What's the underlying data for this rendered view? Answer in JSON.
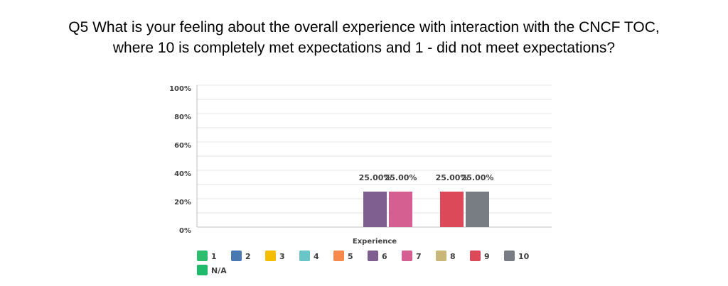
{
  "chart_data": {
    "type": "bar",
    "title_lines": [
      "Q5 What is your feeling about the overall experience with interaction with the CNCF TOC,",
      "where 10 is completely met expectations and 1 - did not meet expectations?"
    ],
    "xlabel": "Experience",
    "ylabel": "",
    "categories": [
      "Experience"
    ],
    "y_tick_labels": [
      "0%",
      "20%",
      "40%",
      "60%",
      "80%",
      "100%"
    ],
    "ylim": [
      0,
      100
    ],
    "grid": true,
    "legend_position": "bottom-left",
    "series": [
      {
        "name": "1",
        "values": [
          0
        ],
        "label": "",
        "color": "#2dbd6e"
      },
      {
        "name": "2",
        "values": [
          0
        ],
        "label": "",
        "color": "#4a79b1"
      },
      {
        "name": "3",
        "values": [
          0
        ],
        "label": "",
        "color": "#f5bd00"
      },
      {
        "name": "4",
        "values": [
          0
        ],
        "label": "",
        "color": "#6ac5c9"
      },
      {
        "name": "5",
        "values": [
          0
        ],
        "label": "",
        "color": "#f68a4c"
      },
      {
        "name": "6",
        "values": [
          25
        ],
        "label": "25.00%",
        "color": "#7e5f90"
      },
      {
        "name": "7",
        "values": [
          25
        ],
        "label": "25.00%",
        "color": "#d65f92"
      },
      {
        "name": "8",
        "values": [
          0
        ],
        "label": "",
        "color": "#c9b77a"
      },
      {
        "name": "9",
        "values": [
          25
        ],
        "label": "25.00%",
        "color": "#dc4a5a"
      },
      {
        "name": "10",
        "values": [
          25
        ],
        "label": "25.00%",
        "color": "#787d83"
      },
      {
        "name": "N/A",
        "values": [
          0
        ],
        "label": "",
        "color": "#1fba6b"
      }
    ]
  }
}
